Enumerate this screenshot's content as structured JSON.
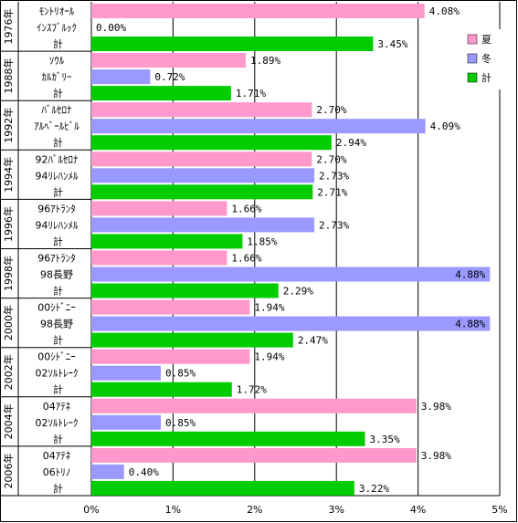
{
  "chart_data": {
    "type": "bar",
    "orientation": "horizontal",
    "xlim": [
      0,
      5
    ],
    "x_unit": "%",
    "x_ticks": [
      "0%",
      "1%",
      "2%",
      "3%",
      "4%",
      "5%"
    ],
    "grid": "vertical",
    "legend_position": "top-right",
    "colors": {
      "summer": "#ff99cc",
      "winter": "#9999ff",
      "total": "#00cc00"
    },
    "series": [
      {
        "name": "夏",
        "color": "#ff99cc"
      },
      {
        "name": "冬",
        "color": "#9999ff"
      },
      {
        "name": "計",
        "color": "#00cc00"
      }
    ],
    "groups": [
      {
        "year": "1976年",
        "bars": [
          {
            "label": "ﾓﾝﾄﾘｵｰﾙ",
            "series": "summer",
            "value": 4.08,
            "value_label": "4.08%"
          },
          {
            "label": "ｲﾝｽﾌﾞﾙｯｸ",
            "series": "winter",
            "value": 0.0,
            "value_label": "0.00%"
          },
          {
            "label": "計",
            "series": "total",
            "value": 3.45,
            "value_label": "3.45%"
          }
        ]
      },
      {
        "year": "1988年",
        "bars": [
          {
            "label": "ｿｳﾙ",
            "series": "summer",
            "value": 1.89,
            "value_label": "1.89%"
          },
          {
            "label": "ｶﾙｶﾞﾘｰ",
            "series": "winter",
            "value": 0.72,
            "value_label": "0.72%"
          },
          {
            "label": "計",
            "series": "total",
            "value": 1.71,
            "value_label": "1.71%"
          }
        ]
      },
      {
        "year": "1992年",
        "bars": [
          {
            "label": "ﾊﾞﾙｾﾛﾅ",
            "series": "summer",
            "value": 2.7,
            "value_label": "2.70%"
          },
          {
            "label": "ｱﾙﾍﾞｰﾙﾋﾞﾙ",
            "series": "winter",
            "value": 4.09,
            "value_label": "4.09%"
          },
          {
            "label": "計",
            "series": "total",
            "value": 2.94,
            "value_label": "2.94%"
          }
        ]
      },
      {
        "year": "1994年",
        "bars": [
          {
            "label": "92ﾊﾞﾙｾﾛﾅ",
            "series": "summer",
            "value": 2.7,
            "value_label": "2.70%"
          },
          {
            "label": "94ﾘﾚﾊﾝﾒﾙ",
            "series": "winter",
            "value": 2.73,
            "value_label": "2.73%"
          },
          {
            "label": "計",
            "series": "total",
            "value": 2.71,
            "value_label": "2.71%"
          }
        ]
      },
      {
        "year": "1996年",
        "bars": [
          {
            "label": "96ｱﾄﾗﾝﾀ",
            "series": "summer",
            "value": 1.66,
            "value_label": "1.66%"
          },
          {
            "label": "94ﾘﾚﾊﾝﾒﾙ",
            "series": "winter",
            "value": 2.73,
            "value_label": "2.73%"
          },
          {
            "label": "計",
            "series": "total",
            "value": 1.85,
            "value_label": "1.85%"
          }
        ]
      },
      {
        "year": "1998年",
        "bars": [
          {
            "label": "96ｱﾄﾗﾝﾀ",
            "series": "summer",
            "value": 1.66,
            "value_label": "1.66%"
          },
          {
            "label": "98長野",
            "series": "winter",
            "value": 4.88,
            "value_label": "4.88%"
          },
          {
            "label": "計",
            "series": "total",
            "value": 2.29,
            "value_label": "2.29%"
          }
        ]
      },
      {
        "year": "2000年",
        "bars": [
          {
            "label": "00ｼﾄﾞﾆｰ",
            "series": "summer",
            "value": 1.94,
            "value_label": "1.94%"
          },
          {
            "label": "98長野",
            "series": "winter",
            "value": 4.88,
            "value_label": "4.88%"
          },
          {
            "label": "計",
            "series": "total",
            "value": 2.47,
            "value_label": "2.47%"
          }
        ]
      },
      {
        "year": "2002年",
        "bars": [
          {
            "label": "00ｼﾄﾞﾆｰ",
            "series": "summer",
            "value": 1.94,
            "value_label": "1.94%"
          },
          {
            "label": "02ｿﾙﾄﾚｰｸ",
            "series": "winter",
            "value": 0.85,
            "value_label": "0.85%"
          },
          {
            "label": "計",
            "series": "total",
            "value": 1.72,
            "value_label": "1.72%"
          }
        ]
      },
      {
        "year": "2004年",
        "bars": [
          {
            "label": "04ｱﾃﾈ",
            "series": "summer",
            "value": 3.98,
            "value_label": "3.98%"
          },
          {
            "label": "02ｿﾙﾄﾚｰｸ",
            "series": "winter",
            "value": 0.85,
            "value_label": "0.85%"
          },
          {
            "label": "計",
            "series": "total",
            "value": 3.35,
            "value_label": "3.35%"
          }
        ]
      },
      {
        "year": "2006年",
        "bars": [
          {
            "label": "04ｱﾃﾈ",
            "series": "summer",
            "value": 3.98,
            "value_label": "3.98%"
          },
          {
            "label": "06ﾄﾘﾉ",
            "series": "winter",
            "value": 0.4,
            "value_label": "0.40%"
          },
          {
            "label": "計",
            "series": "total",
            "value": 3.22,
            "value_label": "3.22%"
          }
        ]
      }
    ]
  }
}
